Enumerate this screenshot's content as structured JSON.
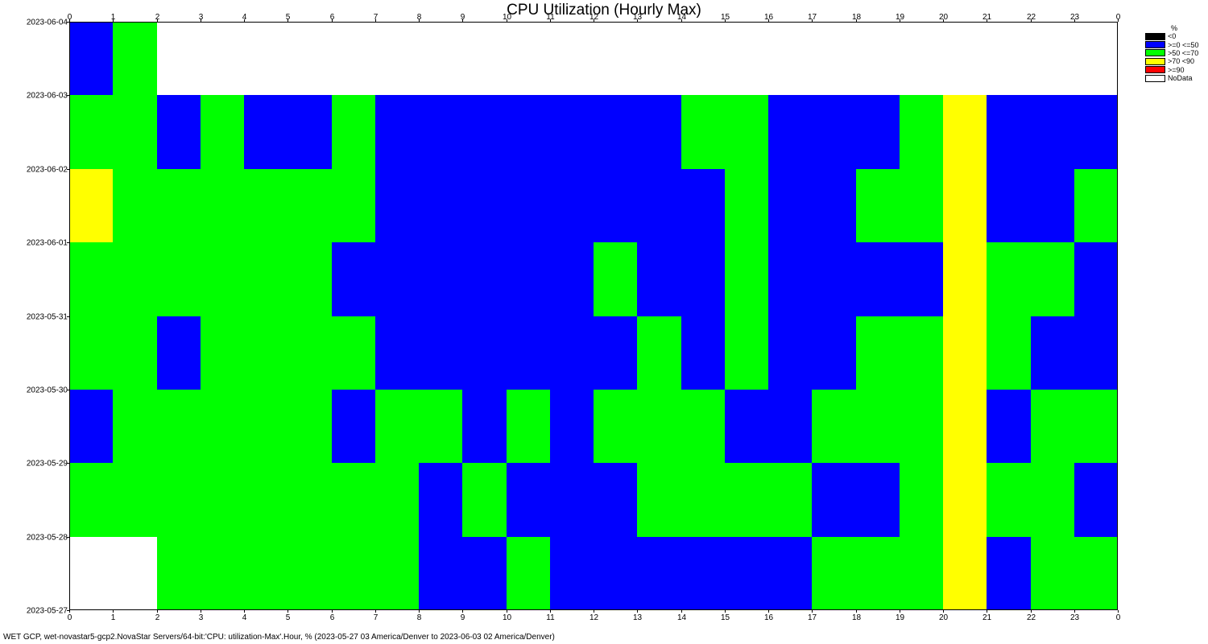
{
  "chart_data": {
    "type": "heatmap",
    "title": "CPU Utilization (Hourly Max)",
    "x_ticks": [
      "0",
      "1",
      "2",
      "3",
      "4",
      "5",
      "6",
      "7",
      "8",
      "9",
      "10",
      "11",
      "12",
      "13",
      "14",
      "15",
      "16",
      "17",
      "18",
      "19",
      "20",
      "21",
      "22",
      "23",
      "0"
    ],
    "y_ticks": [
      "2023-06-04",
      "2023-06-03",
      "2023-06-02",
      "2023-06-01",
      "2023-05-31",
      "2023-05-30",
      "2023-05-29",
      "2023-05-28",
      "2023-05-27"
    ],
    "rows": [
      {
        "day": "2023-06-03",
        "cells": [
          "B",
          "G",
          "W",
          "W",
          "W",
          "W",
          "W",
          "W",
          "W",
          "W",
          "W",
          "W",
          "W",
          "W",
          "W",
          "W",
          "W",
          "W",
          "W",
          "W",
          "W",
          "W",
          "W",
          "W"
        ]
      },
      {
        "day": "2023-06-02",
        "cells": [
          "G",
          "G",
          "B",
          "G",
          "B",
          "B",
          "G",
          "B",
          "B",
          "B",
          "B",
          "B",
          "B",
          "B",
          "G",
          "G",
          "B",
          "B",
          "B",
          "G",
          "Y",
          "B",
          "B",
          "B"
        ]
      },
      {
        "day": "2023-06-01",
        "cells": [
          "Y",
          "G",
          "G",
          "G",
          "G",
          "G",
          "G",
          "B",
          "B",
          "B",
          "B",
          "B",
          "B",
          "B",
          "B",
          "G",
          "B",
          "B",
          "G",
          "G",
          "Y",
          "B",
          "B",
          "G"
        ]
      },
      {
        "day": "2023-05-31",
        "cells": [
          "G",
          "G",
          "G",
          "G",
          "G",
          "G",
          "B",
          "B",
          "B",
          "B",
          "B",
          "B",
          "G",
          "B",
          "B",
          "G",
          "B",
          "B",
          "B",
          "B",
          "Y",
          "G",
          "G",
          "B"
        ]
      },
      {
        "day": "2023-05-30",
        "cells": [
          "G",
          "G",
          "B",
          "G",
          "G",
          "G",
          "G",
          "B",
          "B",
          "B",
          "B",
          "B",
          "B",
          "G",
          "B",
          "G",
          "B",
          "B",
          "G",
          "G",
          "Y",
          "G",
          "B",
          "B"
        ]
      },
      {
        "day": "2023-05-29",
        "cells": [
          "B",
          "G",
          "G",
          "G",
          "G",
          "G",
          "B",
          "G",
          "G",
          "B",
          "G",
          "B",
          "G",
          "G",
          "G",
          "B",
          "B",
          "G",
          "G",
          "G",
          "Y",
          "B",
          "G",
          "G"
        ]
      },
      {
        "day": "2023-05-28",
        "cells": [
          "G",
          "G",
          "G",
          "G",
          "G",
          "G",
          "G",
          "G",
          "B",
          "G",
          "B",
          "B",
          "B",
          "G",
          "G",
          "G",
          "G",
          "B",
          "B",
          "G",
          "Y",
          "G",
          "G",
          "B"
        ]
      },
      {
        "day": "2023-05-27",
        "cells": [
          "W",
          "W",
          "G",
          "G",
          "G",
          "G",
          "G",
          "G",
          "B",
          "B",
          "G",
          "B",
          "B",
          "B",
          "B",
          "B",
          "B",
          "G",
          "G",
          "G",
          "Y",
          "B",
          "G",
          "G"
        ]
      }
    ],
    "legend": {
      "title": "%",
      "entries": [
        {
          "key": "K",
          "label": "<0",
          "color": "#000000"
        },
        {
          "key": "B",
          "label": ">=0 <=50",
          "color": "#0000ff"
        },
        {
          "key": "G",
          "label": ">50 <=70",
          "color": "#00ff00"
        },
        {
          "key": "Y",
          "label": ">70 <90",
          "color": "#ffff00"
        },
        {
          "key": "R",
          "label": ">=90",
          "color": "#ff0000"
        },
        {
          "key": "W",
          "label": "NoData",
          "color": "#ffffff"
        }
      ]
    },
    "grid": false
  },
  "footer": "WET GCP, wet-novastar5-gcp2.NovaStar Servers/64-bit:'CPU: utilization-Max'.Hour, % (2023-05-27 03 America/Denver to 2023-06-03 02 America/Denver)"
}
